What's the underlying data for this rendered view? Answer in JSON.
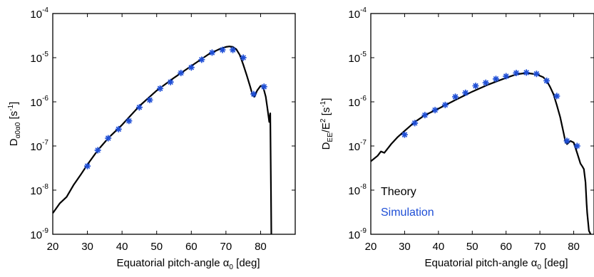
{
  "chart_data": [
    {
      "type": "line",
      "xlabel": "Equatorial pitch-angle α0 [deg]",
      "ylabel": "Dα0α0 [s-1]",
      "xlim": [
        20,
        85
      ],
      "ylim": [
        1e-09,
        0.0001
      ],
      "y_scale": "log",
      "xticks": [
        20,
        30,
        40,
        50,
        60,
        70,
        80
      ],
      "yticks": [
        1e-09,
        1e-08,
        1e-07,
        1e-06,
        1e-05,
        0.0001
      ],
      "series": [
        {
          "name": "Theory",
          "style": "line",
          "color": "#000000",
          "x": [
            20,
            22,
            24,
            26,
            28,
            30,
            33,
            36,
            40,
            45,
            50,
            55,
            60,
            65,
            68,
            70,
            71,
            72,
            73,
            74,
            75,
            76,
            77,
            77.7,
            78.2,
            79,
            80,
            80.8,
            81.5,
            82,
            82.5,
            82.8,
            83,
            83.1
          ],
          "y": [
            3e-09,
            5e-09,
            7e-09,
            1.3e-08,
            2.2e-08,
            3.8e-08,
            8e-08,
            1.5e-07,
            3e-07,
            8e-07,
            1.8e-06,
            3.5e-06,
            6.5e-06,
            1.2e-05,
            1.55e-05,
            1.75e-05,
            1.8e-05,
            1.75e-05,
            1.55e-05,
            1.15e-05,
            7e-06,
            4e-06,
            2.2e-06,
            1.4e-06,
            1.3e-06,
            1.8e-06,
            2.3e-06,
            2.1e-06,
            1.3e-06,
            7e-07,
            3.5e-07,
            5.5e-07,
            1e-08,
            1e-09
          ]
        },
        {
          "name": "Simulation",
          "style": "markers",
          "color": "#1f4fd6",
          "x": [
            30,
            33,
            36,
            39,
            42,
            45,
            48,
            51,
            54,
            57,
            60,
            63,
            66,
            69,
            72,
            75,
            78,
            81
          ],
          "y": [
            3.5e-08,
            8e-08,
            1.5e-07,
            2.4e-07,
            3.7e-07,
            7.5e-07,
            1.1e-06,
            2e-06,
            2.8e-06,
            4.5e-06,
            6e-06,
            9e-06,
            1.3e-05,
            1.5e-05,
            1.5e-05,
            1e-05,
            1.5e-06,
            2.2e-06
          ]
        }
      ]
    },
    {
      "type": "line",
      "xlabel": "Equatorial pitch-angle α0 [deg]",
      "ylabel": "DEE/E2 [s-1]",
      "xlim": [
        20,
        85
      ],
      "ylim": [
        1e-09,
        0.0001
      ],
      "y_scale": "log",
      "xticks": [
        20,
        30,
        40,
        50,
        60,
        70,
        80
      ],
      "yticks": [
        1e-09,
        1e-08,
        1e-07,
        1e-06,
        1e-05,
        0.0001
      ],
      "legend": [
        "Theory",
        "Simulation"
      ],
      "legend_position": "lower-left",
      "series": [
        {
          "name": "Theory",
          "style": "line",
          "color": "#000000",
          "x": [
            20,
            22,
            23,
            24,
            26,
            28,
            30,
            33,
            36,
            40,
            45,
            50,
            55,
            60,
            63,
            65,
            67,
            69,
            71,
            72,
            73,
            74,
            75,
            76,
            77,
            77.5,
            78,
            79,
            80,
            81,
            82,
            82.5,
            83,
            83.5,
            83.8,
            84,
            84.5,
            85
          ],
          "y": [
            4.5e-08,
            6e-08,
            7.5e-08,
            7e-08,
            1.1e-07,
            1.6e-07,
            2.2e-07,
            3.5e-07,
            5e-07,
            7e-07,
            1.1e-06,
            1.7e-06,
            2.5e-06,
            3.5e-06,
            4.2e-06,
            4.4e-06,
            4.4e-06,
            4.2e-06,
            3.6e-06,
            3e-06,
            2.2e-06,
            1.5e-06,
            8.5e-07,
            4.5e-07,
            2e-07,
            1.3e-07,
            1.1e-07,
            1.3e-07,
            1.2e-07,
            7e-08,
            4e-08,
            3.5e-08,
            3e-08,
            1.5e-08,
            5e-09,
            3e-09,
            1.2e-09,
            1e-09
          ]
        },
        {
          "name": "Simulation",
          "style": "markers",
          "color": "#1f4fd6",
          "x": [
            30,
            33,
            36,
            39,
            42,
            45,
            48,
            51,
            54,
            57,
            60,
            63,
            66,
            69,
            72,
            75,
            78,
            81
          ],
          "y": [
            1.8e-07,
            3.3e-07,
            5e-07,
            6.5e-07,
            8.5e-07,
            1.3e-06,
            1.6e-06,
            2.3e-06,
            2.7e-06,
            3.3e-06,
            3.8e-06,
            4.5e-06,
            4.6e-06,
            4.3e-06,
            3e-06,
            1.35e-06,
            1.3e-07,
            1e-07
          ]
        }
      ]
    }
  ],
  "colors": {
    "theory": "#000000",
    "simulation": "#1f4fd6"
  }
}
